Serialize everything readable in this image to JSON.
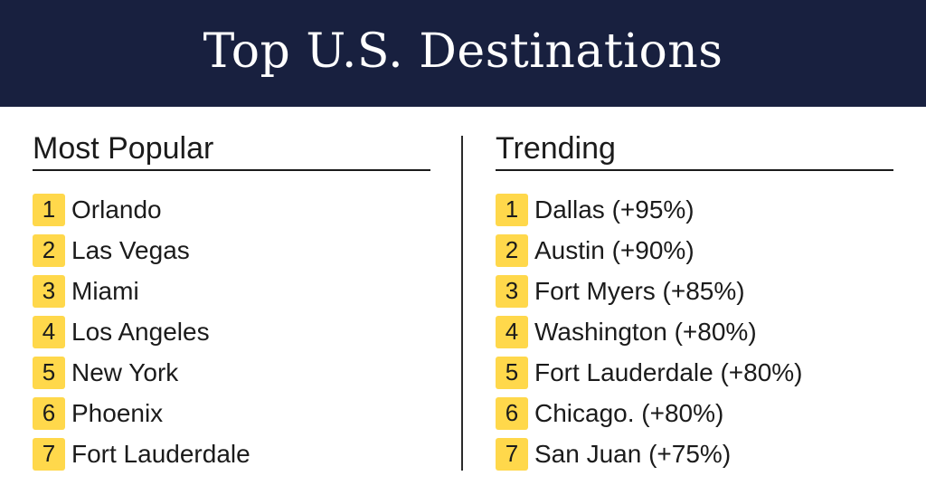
{
  "header": {
    "title": "Top U.S. Destinations"
  },
  "most_popular": {
    "heading": "Most Popular",
    "items": [
      {
        "rank": "1",
        "label": "Orlando"
      },
      {
        "rank": "2",
        "label": "Las Vegas"
      },
      {
        "rank": "3",
        "label": "Miami"
      },
      {
        "rank": "4",
        "label": "Los Angeles"
      },
      {
        "rank": "5",
        "label": "New York"
      },
      {
        "rank": "6",
        "label": "Phoenix"
      },
      {
        "rank": "7",
        "label": "Fort Lauderdale"
      }
    ]
  },
  "trending": {
    "heading": "Trending",
    "items": [
      {
        "rank": "1",
        "label": "Dallas (+95%)"
      },
      {
        "rank": "2",
        "label": "Austin (+90%)"
      },
      {
        "rank": "3",
        "label": "Fort Myers (+85%)"
      },
      {
        "rank": "4",
        "label": "Washington (+80%)"
      },
      {
        "rank": "5",
        "label": "Fort Lauderdale (+80%)"
      },
      {
        "rank": "6",
        "label": "Chicago. (+80%)"
      },
      {
        "rank": "7",
        "label": "San Juan (+75%)"
      }
    ]
  },
  "colors": {
    "header_bg": "#18203f",
    "badge": "#ffd84b",
    "text": "#1b1b1b"
  }
}
